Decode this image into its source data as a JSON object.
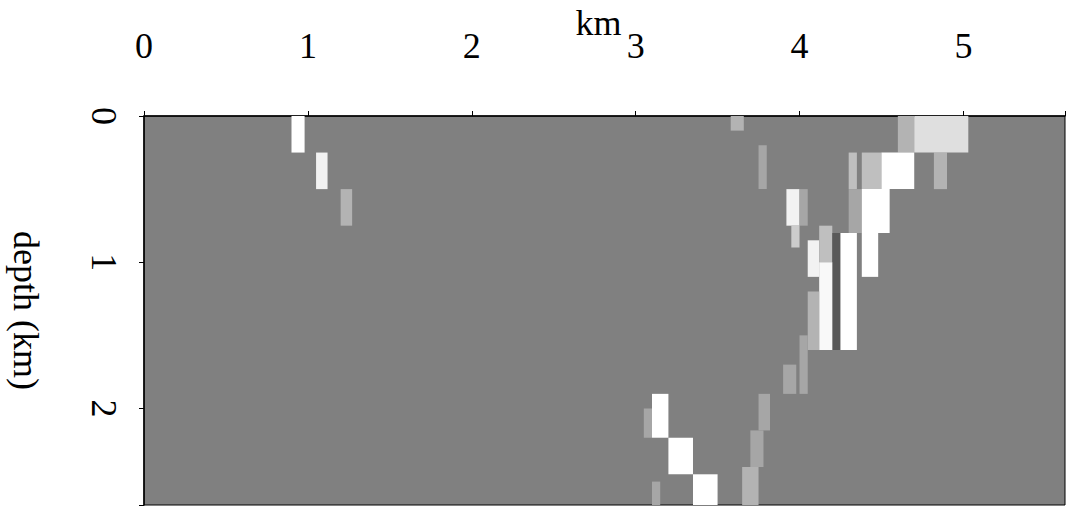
{
  "chart_data": {
    "type": "heatmap",
    "x_label": "km",
    "y_label": "depth (km)",
    "xlim": [
      0,
      5.62
    ],
    "ylim": [
      0,
      2.66
    ],
    "xticks": [
      0,
      1,
      2,
      3,
      4,
      5
    ],
    "yticks": [
      0,
      1,
      2
    ],
    "grid": false,
    "vlim": [
      -1,
      1
    ],
    "cells": [
      [
        0.9,
        0.98,
        0,
        0.25,
        1.0
      ],
      [
        1.05,
        1.12,
        0.25,
        0.5,
        0.9
      ],
      [
        1.2,
        1.27,
        0.5,
        0.75,
        0.4
      ],
      [
        3.58,
        3.66,
        0,
        0.1,
        0.4
      ],
      [
        3.75,
        3.8,
        0.2,
        0.5,
        0.3
      ],
      [
        4.3,
        4.35,
        0.25,
        0.5,
        0.5
      ],
      [
        4.82,
        4.9,
        0.25,
        0.5,
        0.4
      ],
      [
        4.6,
        4.7,
        0,
        0.25,
        0.4
      ],
      [
        4.7,
        5.03,
        0,
        0.25,
        0.75
      ],
      [
        4.38,
        4.5,
        0.25,
        0.5,
        0.5
      ],
      [
        4.5,
        4.7,
        0.25,
        0.5,
        1.0
      ],
      [
        4.3,
        4.38,
        0.5,
        0.8,
        0.3
      ],
      [
        4.38,
        4.55,
        0.5,
        0.8,
        1.0
      ],
      [
        3.92,
        4.0,
        0.5,
        0.75,
        0.9
      ],
      [
        4.0,
        4.05,
        0.5,
        0.75,
        0.3
      ],
      [
        3.95,
        4.0,
        0.75,
        0.9,
        0.6
      ],
      [
        4.05,
        4.12,
        0.85,
        1.1,
        0.9
      ],
      [
        4.12,
        4.2,
        0.75,
        1.0,
        0.5
      ],
      [
        4.2,
        4.25,
        0.8,
        1.6,
        -0.3
      ],
      [
        4.38,
        4.48,
        0.8,
        1.1,
        1.0
      ],
      [
        4.25,
        4.35,
        0.8,
        1.6,
        1.0
      ],
      [
        4.12,
        4.2,
        1.0,
        1.6,
        0.95
      ],
      [
        4.05,
        4.12,
        1.2,
        1.6,
        0.4
      ],
      [
        4.0,
        4.05,
        1.5,
        1.9,
        0.3
      ],
      [
        3.9,
        3.98,
        1.7,
        1.9,
        0.3
      ],
      [
        3.05,
        3.1,
        2.0,
        2.2,
        0.3
      ],
      [
        3.1,
        3.2,
        1.9,
        2.2,
        1.0
      ],
      [
        3.2,
        3.35,
        2.2,
        2.45,
        1.0
      ],
      [
        3.35,
        3.5,
        2.45,
        2.66,
        1.0
      ],
      [
        3.1,
        3.15,
        2.5,
        2.66,
        0.3
      ],
      [
        3.75,
        3.82,
        1.9,
        2.15,
        0.3
      ],
      [
        3.7,
        3.78,
        2.15,
        2.4,
        0.3
      ],
      [
        3.65,
        3.75,
        2.4,
        2.66,
        0.4
      ]
    ]
  }
}
